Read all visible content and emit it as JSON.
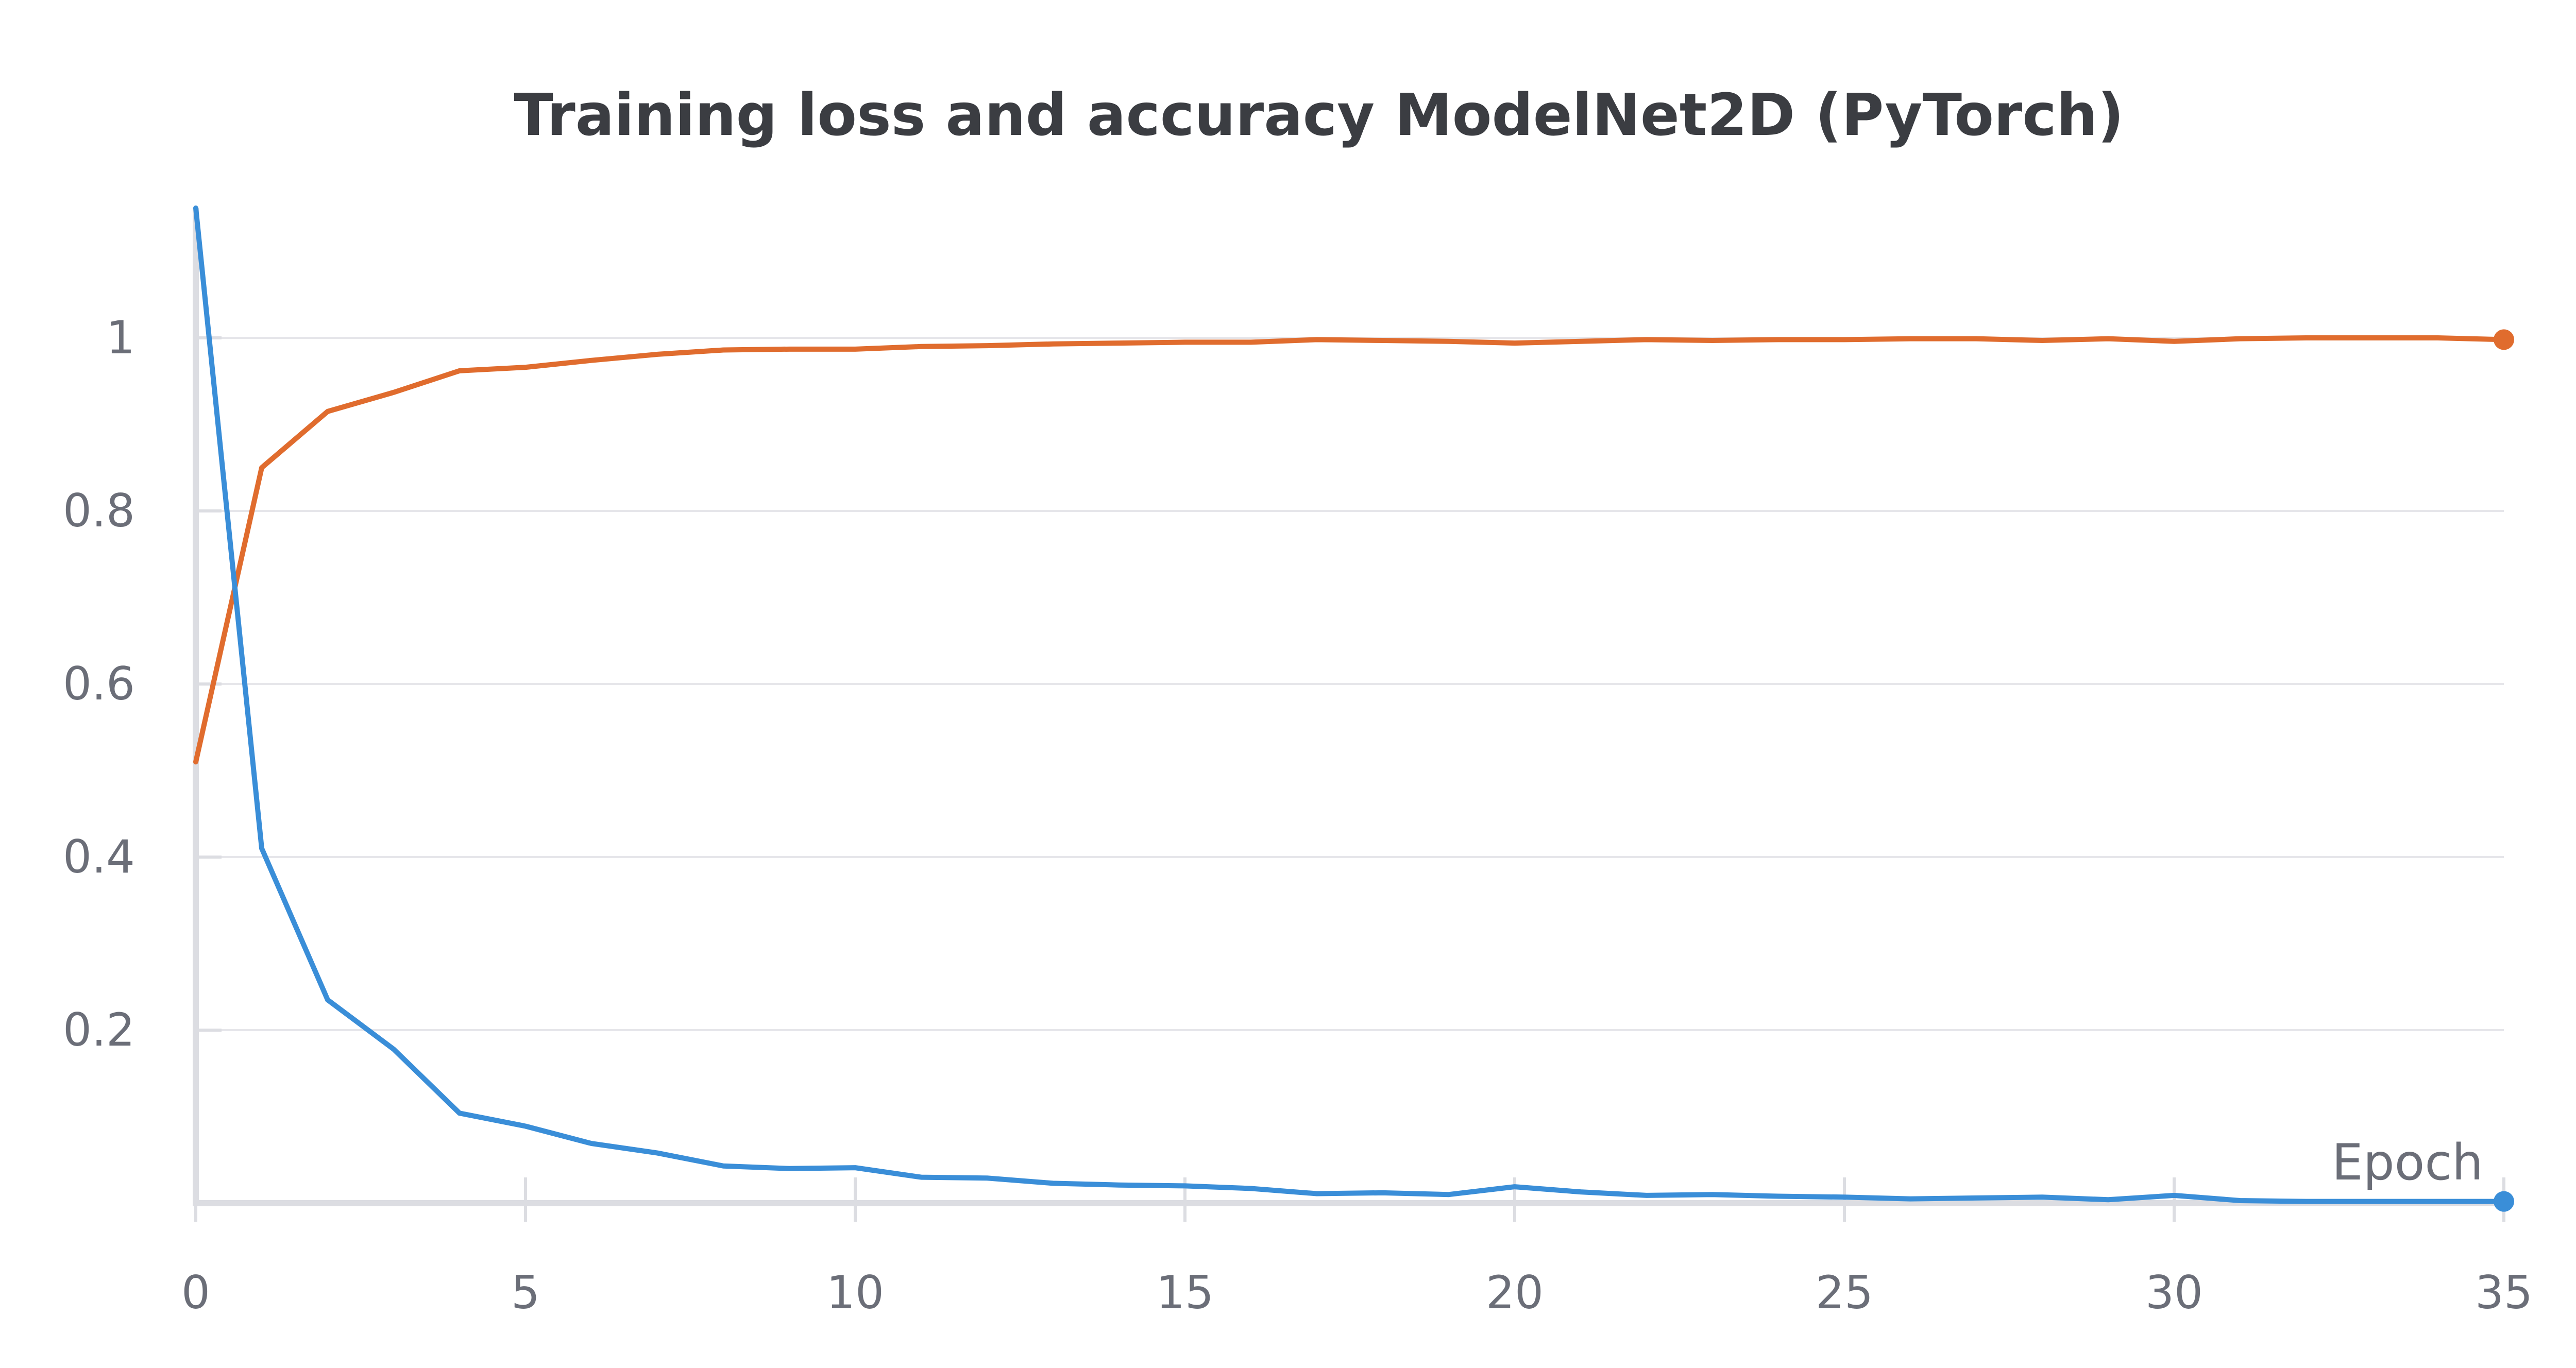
{
  "chart_data": {
    "type": "line",
    "title": "Training loss and accuracy ModelNet2D (PyTorch)",
    "xlabel": "Epoch",
    "ylabel": "",
    "xlim": [
      0,
      35
    ],
    "ylim": [
      0,
      1.15
    ],
    "x_ticks": [
      0,
      5,
      10,
      15,
      20,
      25,
      30,
      35
    ],
    "x_tick_labels": [
      "0",
      "5",
      "10",
      "15",
      "20",
      "25",
      "30",
      "35"
    ],
    "y_ticks": [
      0.2,
      0.4,
      0.6,
      0.8,
      1
    ],
    "y_tick_labels": [
      "0.2",
      "0.4",
      "0.6",
      "0.8",
      "1"
    ],
    "grid": true,
    "legend": "none",
    "x": [
      0,
      1,
      2,
      3,
      4,
      5,
      6,
      7,
      8,
      9,
      10,
      11,
      12,
      13,
      14,
      15,
      16,
      17,
      18,
      19,
      20,
      21,
      22,
      23,
      24,
      25,
      26,
      27,
      28,
      29,
      30,
      31,
      32,
      33,
      34,
      35
    ],
    "series": [
      {
        "color": "#e06c2e",
        "values": [
          0.51,
          0.85,
          0.915,
          0.937,
          0.962,
          0.966,
          0.974,
          0.981,
          0.986,
          0.987,
          0.987,
          0.99,
          0.991,
          0.993,
          0.994,
          0.995,
          0.995,
          0.998,
          0.997,
          0.996,
          0.994,
          0.996,
          0.998,
          0.997,
          0.998,
          0.998,
          0.999,
          0.999,
          0.997,
          0.999,
          0.996,
          0.999,
          1.0,
          1.0,
          1.0,
          0.998
        ]
      },
      {
        "color": "#3a8ed8",
        "values": [
          1.15,
          0.41,
          0.235,
          0.178,
          0.104,
          0.089,
          0.069,
          0.058,
          0.043,
          0.04,
          0.041,
          0.03,
          0.029,
          0.023,
          0.021,
          0.02,
          0.017,
          0.011,
          0.012,
          0.01,
          0.019,
          0.013,
          0.009,
          0.01,
          0.008,
          0.007,
          0.005,
          0.006,
          0.007,
          0.004,
          0.009,
          0.003,
          0.002,
          0.002,
          0.002,
          0.002
        ]
      }
    ]
  }
}
